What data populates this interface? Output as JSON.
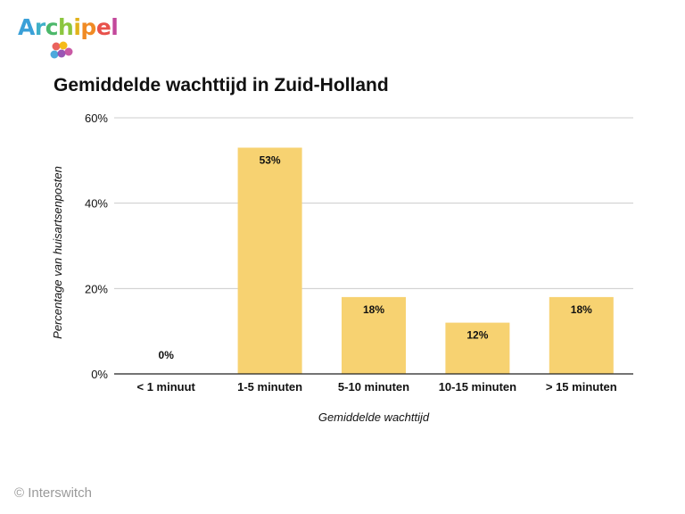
{
  "logo": {
    "letters": [
      {
        "ch": "A",
        "color": "#3aa0d8"
      },
      {
        "ch": "r",
        "color": "#3fb0c8"
      },
      {
        "ch": "c",
        "color": "#4cb86a"
      },
      {
        "ch": "h",
        "color": "#8cc63f"
      },
      {
        "ch": "i",
        "color": "#e2b31c"
      },
      {
        "ch": "p",
        "color": "#f08a24"
      },
      {
        "ch": "e",
        "color": "#e8514b"
      },
      {
        "ch": "l",
        "color": "#c3489b"
      }
    ],
    "dot_colors": [
      "#e8514b",
      "#f4b400",
      "#3aa0d8",
      "#8e44ad",
      "#c3489b"
    ]
  },
  "copyright": "© Interswitch",
  "chart_data": {
    "type": "bar",
    "title": "Gemiddelde wachttijd in Zuid-Holland",
    "xlabel": "Gemiddelde wachttijd",
    "ylabel": "Percentage van huisartsenposten",
    "categories": [
      "< 1 minuut",
      "1-5 minuten",
      "5-10 minuten",
      "10-15 minuten",
      "> 15 minuten"
    ],
    "values": [
      0,
      53,
      18,
      12,
      18
    ],
    "value_labels": [
      "0%",
      "53%",
      "18%",
      "12%",
      "18%"
    ],
    "ylim": [
      0,
      60
    ],
    "yticks": [
      0,
      20,
      40,
      60
    ],
    "ytick_labels": [
      "0%",
      "20%",
      "40%",
      "60%"
    ],
    "grid": true,
    "legend": "none",
    "bar_color": "#f7d271"
  }
}
